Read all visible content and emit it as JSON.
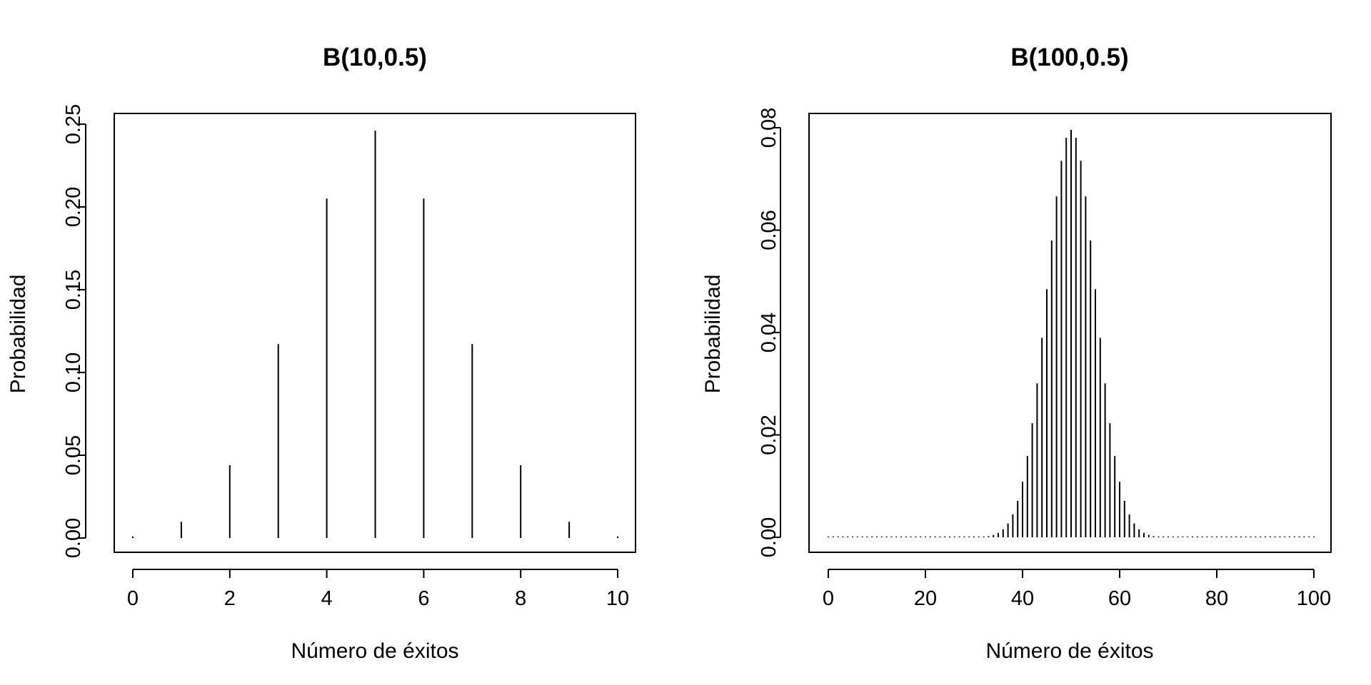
{
  "chart_data": [
    {
      "type": "bar",
      "title": "B(10,0.5)",
      "xlabel": "Número de éxitos",
      "ylabel": "Probabilidad",
      "xlim": [
        0,
        10
      ],
      "ylim": [
        0,
        0.25
      ],
      "xticks": [
        0,
        2,
        4,
        6,
        8,
        10
      ],
      "xtick_labels": [
        "0",
        "2",
        "4",
        "6",
        "8",
        "10"
      ],
      "yticks": [
        0,
        0.05,
        0.1,
        0.15,
        0.2,
        0.25
      ],
      "ytick_labels": [
        "0.00",
        "0.05",
        "0.10",
        "0.15",
        "0.20",
        "0.25"
      ],
      "x": [
        0,
        1,
        2,
        3,
        4,
        5,
        6,
        7,
        8,
        9,
        10
      ],
      "values": [
        0.00098,
        0.00977,
        0.04395,
        0.11719,
        0.20508,
        0.24609,
        0.20508,
        0.11719,
        0.04395,
        0.00977,
        0.00098
      ],
      "grid": false
    },
    {
      "type": "bar",
      "title": "B(100,0.5)",
      "xlabel": "Número de éxitos",
      "ylabel": "Probabilidad",
      "xlim": [
        0,
        100
      ],
      "ylim": [
        0,
        0.08
      ],
      "xticks": [
        0,
        20,
        40,
        60,
        80,
        100
      ],
      "xtick_labels": [
        "0",
        "20",
        "40",
        "60",
        "80",
        "100"
      ],
      "yticks": [
        0,
        0.02,
        0.04,
        0.06,
        0.08
      ],
      "ytick_labels": [
        "0.00",
        "0.02",
        "0.04",
        "0.06",
        "0.08"
      ],
      "x_start": 0,
      "values": [
        0,
        0,
        0,
        0,
        0,
        0,
        0,
        0,
        0,
        0,
        0,
        0,
        0,
        0,
        0,
        0,
        0,
        0,
        0,
        0,
        0,
        0,
        0,
        0,
        0,
        0,
        0,
        0,
        0,
        2e-05,
        2e-05,
        5e-05,
        0.00011,
        0.00023,
        0.00046,
        0.00086,
        0.00156,
        0.0027,
        0.00447,
        0.00711,
        0.01084,
        0.01587,
        0.02229,
        0.03007,
        0.03895,
        0.04847,
        0.05796,
        0.06659,
        0.07353,
        0.07803,
        0.07959,
        0.07803,
        0.07353,
        0.06659,
        0.05796,
        0.04847,
        0.03895,
        0.03007,
        0.02229,
        0.01587,
        0.01084,
        0.00711,
        0.00447,
        0.0027,
        0.00156,
        0.00086,
        0.00046,
        0.00023,
        0.00011,
        5e-05,
        2e-05,
        2e-05,
        0,
        0,
        0,
        0,
        0,
        0,
        0,
        0,
        0,
        0,
        0,
        0,
        0,
        0,
        0,
        0,
        0,
        0,
        0,
        0,
        0,
        0,
        0,
        0,
        0,
        0,
        0,
        0,
        0
      ],
      "grid": false
    }
  ]
}
